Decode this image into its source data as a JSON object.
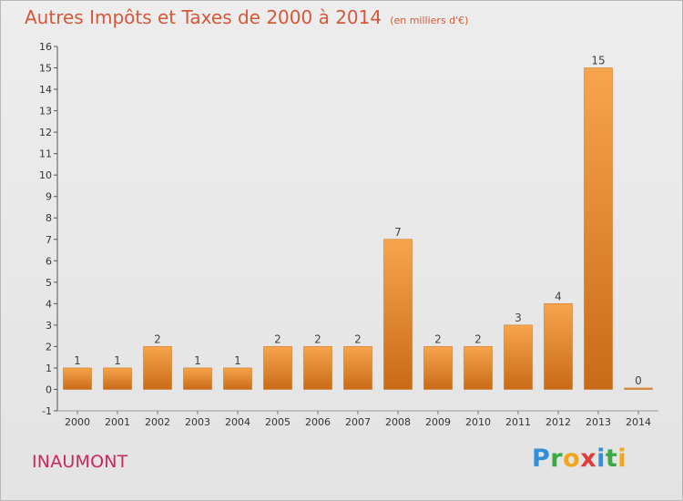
{
  "header": {
    "title": "Autres Impôts et Taxes de 2000 à 2014",
    "subtitle": "(en milliers d'€)"
  },
  "footer": {
    "commune": "INAUMONT",
    "logo": "Proxiti"
  },
  "colors": {
    "title": "#d4583a",
    "commune": "#c8285a",
    "bar_light": "#f7a54c",
    "bar_dark": "#c96a17"
  },
  "chart_data": {
    "type": "bar",
    "title": "Autres Impôts et Taxes de 2000 à 2014",
    "subtitle": "(en milliers d'€)",
    "categories": [
      "2000",
      "2001",
      "2002",
      "2003",
      "2004",
      "2005",
      "2006",
      "2007",
      "2008",
      "2009",
      "2010",
      "2011",
      "2012",
      "2013",
      "2014"
    ],
    "values": [
      1,
      1,
      2,
      1,
      1,
      2,
      2,
      2,
      7,
      2,
      2,
      3,
      4,
      15,
      0
    ],
    "data_labels": [
      "1",
      "1",
      "2",
      "1",
      "1",
      "2",
      "2",
      "2",
      "7",
      "2",
      "2",
      "3",
      "4",
      "15",
      "0"
    ],
    "ylim": [
      -1,
      16
    ],
    "yticks": [
      -1,
      0,
      1,
      2,
      3,
      4,
      5,
      6,
      7,
      8,
      9,
      10,
      11,
      12,
      13,
      14,
      15,
      16
    ],
    "grid": false,
    "legend": "none"
  }
}
